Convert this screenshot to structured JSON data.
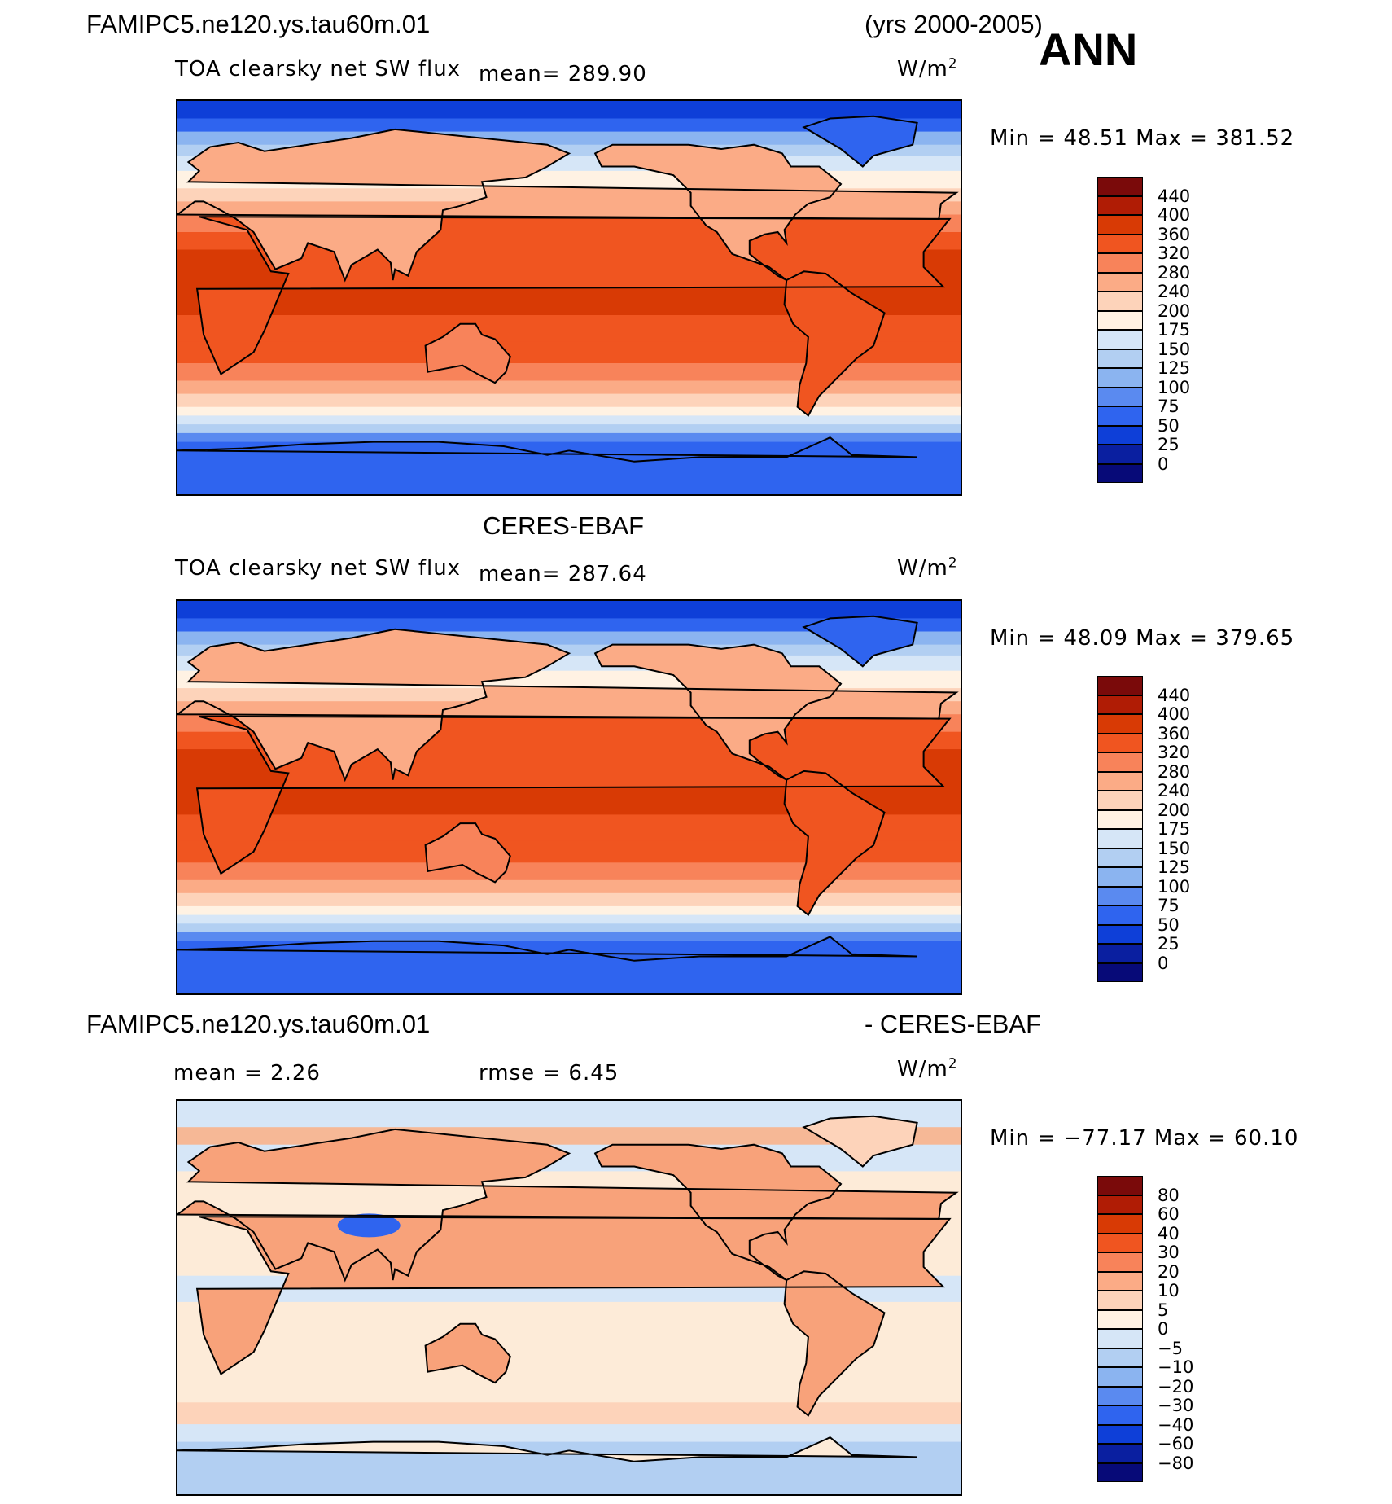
{
  "header": {
    "case_name": "FAMIPC5.ne120.ys.tau60m.01",
    "years": "(yrs 2000-2005)",
    "season": "ANN"
  },
  "panels": [
    {
      "title": "",
      "variable": "TOA clearsky net SW flux",
      "mean_text": "mean=  289.90",
      "units": "W/m",
      "units_sup": "2",
      "minmax": "Min =   48.51  Max  =  381.52",
      "palette": "sequential"
    },
    {
      "title": "CERES-EBAF",
      "variable": "TOA clearsky net SW flux",
      "mean_text": "mean=  287.64",
      "units": "W/m",
      "units_sup": "2",
      "minmax": "Min =   48.09  Max  =  379.65",
      "palette": "sequential"
    },
    {
      "title_left": "FAMIPC5.ne120.ys.tau60m.01",
      "title_right": "- CERES-EBAF",
      "mean_text": "mean  =    2.26",
      "rmse_text": "rmse  =    6.45",
      "units": "W/m",
      "units_sup": "2",
      "minmax": "Min  = −77.17  Max  =   60.10",
      "palette": "diverging"
    }
  ],
  "colorbars": {
    "sequential": {
      "ticks": [
        "440",
        "400",
        "360",
        "320",
        "280",
        "240",
        "200",
        "175",
        "150",
        "125",
        "100",
        "75",
        "50",
        "25",
        "0"
      ],
      "colors": [
        "#7a0a0a",
        "#b01c05",
        "#d83a05",
        "#f05520",
        "#f8835a",
        "#fbab86",
        "#fdd3ba",
        "#fff2e3",
        "#d6e6f7",
        "#b2cff2",
        "#8bb4f0",
        "#5a8af0",
        "#2f64ef",
        "#0e3fd8",
        "#0a1fa0",
        "#070a78"
      ]
    },
    "diverging": {
      "ticks": [
        "80",
        "60",
        "40",
        "30",
        "20",
        "10",
        "5",
        "0",
        "−5",
        "−10",
        "−20",
        "−30",
        "−40",
        "−60",
        "−80"
      ],
      "colors": [
        "#7a0a0a",
        "#b01c05",
        "#d83a05",
        "#f05520",
        "#f8835a",
        "#fbab86",
        "#fdd3ba",
        "#fff2e3",
        "#d6e6f7",
        "#b2cff2",
        "#8bb4f0",
        "#5a8af0",
        "#2f64ef",
        "#0e3fd8",
        "#0a1fa0",
        "#070a78"
      ]
    }
  }
}
